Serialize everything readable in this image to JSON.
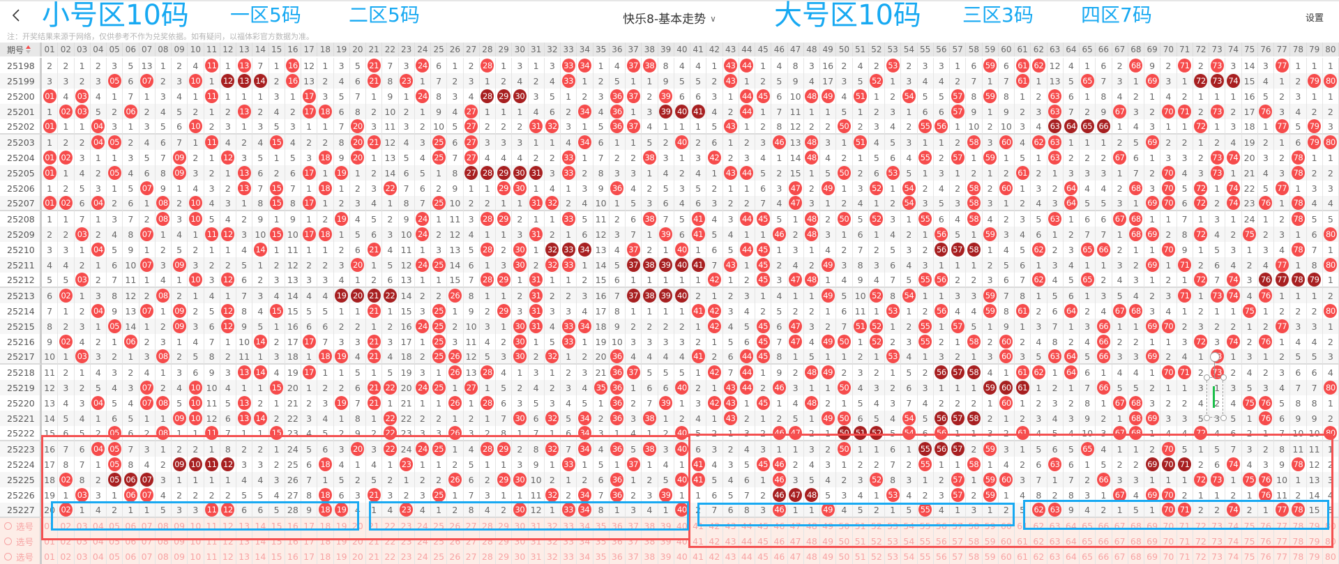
{
  "header": {
    "back_icon": "chevron-left-icon",
    "title": "快乐8-基本走势",
    "title_dropdown_icon": "chevron-down-icon",
    "settings_label": "设置"
  },
  "note": "注：开奖结果来源于网络，仅供参考不作为兑奖依据。如有疑问，以福体彩官方数据为准。",
  "table": {
    "issue_header": "期号",
    "sort_icon": "sort-asc-icon",
    "numbers": [
      "01",
      "02",
      "03",
      "04",
      "05",
      "06",
      "07",
      "08",
      "09",
      "10",
      "11",
      "12",
      "13",
      "14",
      "15",
      "16",
      "17",
      "18",
      "19",
      "20",
      "21",
      "22",
      "23",
      "24",
      "25",
      "26",
      "27",
      "28",
      "29",
      "30",
      "31",
      "32",
      "33",
      "34",
      "35",
      "36",
      "37",
      "38",
      "39",
      "40",
      "41",
      "42",
      "43",
      "44",
      "45",
      "46",
      "47",
      "48",
      "49",
      "50",
      "51",
      "52",
      "53",
      "54",
      "55",
      "56",
      "57",
      "58",
      "59",
      "60",
      "61",
      "62",
      "63",
      "64",
      "65",
      "66",
      "67",
      "68",
      "69",
      "70",
      "71",
      "72",
      "73",
      "74",
      "75",
      "76",
      "77",
      "78",
      "79",
      "80"
    ],
    "colors": {
      "hit_ball": "#f64b4b",
      "consecutive_ball": "#a71f20",
      "pick_row_bg": "#fdede7",
      "pick_text": "#f7a3a3"
    },
    "omission_first_row": [
      2,
      2,
      1,
      2,
      3,
      5,
      13,
      1,
      2,
      4,
      null,
      1,
      null,
      7,
      1,
      null,
      12,
      1,
      3,
      5,
      null,
      7,
      3,
      null,
      6,
      1,
      2,
      null,
      1,
      3,
      1,
      3,
      null,
      null,
      1,
      4,
      null,
      null,
      8,
      4,
      4,
      1,
      null,
      null,
      1,
      4,
      8,
      3,
      16,
      2,
      4,
      2,
      null,
      2,
      3,
      3,
      1,
      6,
      null,
      6,
      null,
      null,
      12,
      4,
      1,
      6,
      2,
      null,
      9,
      2,
      null,
      2,
      null,
      3,
      14,
      3,
      null,
      1,
      1,
      1
    ],
    "draws": [
      {
        "issue": "25198",
        "hits": [
          11,
          13,
          16,
          21,
          24,
          28,
          33,
          34,
          37,
          38,
          43,
          44,
          53,
          59,
          61,
          62,
          68,
          71,
          73,
          77
        ]
      },
      {
        "issue": "25199",
        "hits": [
          5,
          7,
          10,
          12,
          13,
          14,
          16,
          21,
          23,
          33,
          43,
          52,
          61,
          65,
          69,
          72,
          73,
          74,
          79,
          80
        ]
      },
      {
        "issue": "25200",
        "hits": [
          1,
          3,
          11,
          17,
          24,
          28,
          29,
          30,
          36,
          37,
          39,
          44,
          45,
          48,
          49,
          51,
          54,
          57,
          59,
          63
        ]
      },
      {
        "issue": "25201",
        "hits": [
          2,
          3,
          6,
          13,
          17,
          18,
          27,
          34,
          36,
          39,
          40,
          41,
          44,
          57,
          63,
          67,
          70,
          71,
          73,
          76
        ]
      },
      {
        "issue": "25202",
        "hits": [
          1,
          4,
          10,
          20,
          27,
          31,
          32,
          36,
          37,
          43,
          50,
          55,
          56,
          63,
          64,
          65,
          66,
          72,
          77,
          79
        ]
      },
      {
        "issue": "25203",
        "hits": [
          4,
          5,
          11,
          15,
          20,
          21,
          25,
          27,
          34,
          40,
          46,
          48,
          51,
          58,
          60,
          62,
          63,
          69,
          79,
          80
        ]
      },
      {
        "issue": "25204",
        "hits": [
          1,
          2,
          9,
          12,
          18,
          20,
          25,
          27,
          33,
          38,
          42,
          48,
          55,
          57,
          59,
          63,
          67,
          73,
          74,
          78
        ]
      },
      {
        "issue": "25205",
        "hits": [
          1,
          5,
          9,
          13,
          17,
          19,
          27,
          28,
          29,
          30,
          31,
          33,
          43,
          44,
          50,
          53,
          61,
          70,
          73,
          78
        ]
      },
      {
        "issue": "25206",
        "hits": [
          7,
          13,
          15,
          18,
          22,
          29,
          30,
          36,
          47,
          49,
          52,
          54,
          58,
          60,
          64,
          68,
          70,
          72,
          74,
          77
        ]
      },
      {
        "issue": "25207",
        "hits": [
          1,
          2,
          4,
          8,
          10,
          15,
          17,
          25,
          31,
          32,
          47,
          54,
          58,
          64,
          69,
          70,
          72,
          74,
          76,
          78
        ]
      },
      {
        "issue": "25208",
        "hits": [
          8,
          10,
          19,
          24,
          28,
          29,
          33,
          38,
          41,
          44,
          45,
          48,
          50,
          52,
          55,
          58,
          63,
          67,
          68,
          78
        ]
      },
      {
        "issue": "25209",
        "hits": [
          3,
          7,
          11,
          12,
          15,
          17,
          18,
          24,
          31,
          39,
          41,
          46,
          48,
          56,
          59,
          68,
          69,
          72,
          75,
          80
        ]
      },
      {
        "issue": "25210",
        "hits": [
          4,
          14,
          21,
          28,
          30,
          32,
          33,
          34,
          37,
          40,
          44,
          45,
          56,
          57,
          58,
          62,
          65,
          66,
          70,
          78
        ]
      },
      {
        "issue": "25211",
        "hits": [
          7,
          9,
          20,
          24,
          25,
          30,
          32,
          33,
          37,
          38,
          39,
          40,
          41,
          43,
          45,
          49,
          69,
          71,
          77,
          80
        ]
      },
      {
        "issue": "25212",
        "hits": [
          3,
          10,
          12,
          28,
          29,
          31,
          42,
          45,
          47,
          48,
          55,
          56,
          62,
          65,
          72,
          74,
          76,
          77,
          78,
          79
        ]
      },
      {
        "issue": "25213",
        "hits": [
          2,
          8,
          19,
          20,
          21,
          22,
          26,
          31,
          37,
          38,
          39,
          40,
          49,
          52,
          54,
          59,
          71,
          73,
          74,
          76
        ]
      },
      {
        "issue": "25214",
        "hits": [
          4,
          7,
          9,
          12,
          15,
          21,
          25,
          29,
          31,
          41,
          42,
          53,
          56,
          59,
          61,
          64,
          67,
          68,
          75,
          80
        ]
      },
      {
        "issue": "25215",
        "hits": [
          5,
          9,
          12,
          24,
          25,
          30,
          31,
          33,
          34,
          42,
          45,
          47,
          51,
          52,
          55,
          57,
          66,
          69,
          70,
          77
        ]
      },
      {
        "issue": "25216",
        "hits": [
          2,
          6,
          14,
          17,
          21,
          25,
          30,
          33,
          45,
          47,
          49,
          50,
          52,
          55,
          58,
          60,
          66,
          72,
          74,
          76
        ]
      },
      {
        "issue": "25217",
        "hits": [
          3,
          8,
          18,
          19,
          21,
          25,
          26,
          30,
          32,
          36,
          41,
          44,
          45,
          53,
          60,
          63,
          64,
          66,
          69,
          73
        ]
      },
      {
        "issue": "25218",
        "hits": [
          13,
          14,
          17,
          26,
          28,
          36,
          37,
          42,
          44,
          48,
          49,
          56,
          57,
          58,
          61,
          62,
          64,
          70,
          71,
          73
        ]
      },
      {
        "issue": "25219",
        "hits": [
          7,
          10,
          15,
          21,
          22,
          24,
          25,
          27,
          35,
          36,
          40,
          43,
          44,
          46,
          50,
          59,
          60,
          61,
          66,
          80
        ]
      },
      {
        "issue": "25220",
        "hits": [
          4,
          7,
          8,
          10,
          13,
          19,
          21,
          26,
          28,
          36,
          39,
          42,
          43,
          45,
          48,
          60,
          67,
          68,
          75,
          76
        ]
      },
      {
        "issue": "25221",
        "hits": [
          9,
          10,
          13,
          14,
          22,
          30,
          32,
          34,
          36,
          38,
          43,
          49,
          50,
          54,
          56,
          57,
          58,
          68,
          69,
          76
        ]
      },
      {
        "issue": "25222",
        "hits": [
          5,
          8,
          11,
          15,
          22,
          26,
          34,
          40,
          46,
          47,
          50,
          51,
          52,
          54,
          56,
          61,
          67,
          68,
          72,
          80
        ]
      },
      {
        "issue": "25223",
        "hits": [
          4,
          5,
          20,
          22,
          24,
          25,
          28,
          29,
          32,
          34,
          36,
          38,
          40,
          50,
          55,
          56,
          57,
          59,
          65,
          70
        ]
      },
      {
        "issue": "25224",
        "hits": [
          5,
          9,
          10,
          11,
          12,
          18,
          23,
          33,
          37,
          41,
          45,
          46,
          55,
          58,
          63,
          69,
          70,
          71,
          74,
          78
        ]
      },
      {
        "issue": "25225",
        "hits": [
          2,
          5,
          6,
          7,
          26,
          29,
          30,
          36,
          40,
          41,
          46,
          52,
          57,
          59,
          60,
          66,
          72,
          73,
          75,
          76
        ]
      },
      {
        "issue": "25226",
        "hits": [
          3,
          6,
          7,
          18,
          21,
          25,
          32,
          34,
          36,
          39,
          46,
          47,
          48,
          53,
          57,
          59,
          67,
          69,
          70,
          76
        ]
      },
      {
        "issue": "25227",
        "hits": [
          2,
          11,
          12,
          18,
          19,
          23,
          30,
          33,
          34,
          40,
          46,
          49,
          55,
          62,
          63,
          70,
          71,
          74,
          77,
          78
        ]
      }
    ],
    "pick_rows": [
      {
        "label": "选号",
        "icon": "radio-icon"
      },
      {
        "label": "选号",
        "icon": "radio-icon"
      },
      {
        "label": "选号",
        "icon": "radio-icon"
      }
    ]
  },
  "annotations": {
    "color_blue": "#17a9f2",
    "color_red": "#f45050",
    "small_zone": "小号区10码",
    "big_zone": "大号区10码",
    "zone1": "一区5码",
    "zone2": "二区5码",
    "zone3": "三区3码",
    "zone4": "四区7码"
  }
}
